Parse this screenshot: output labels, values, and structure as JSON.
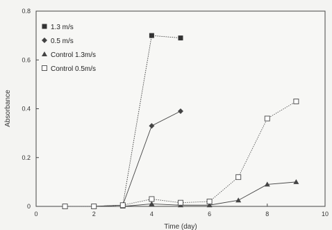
{
  "chart_data": {
    "type": "line",
    "xlabel": "Time (day)",
    "ylabel": "Absorbance",
    "xlim": [
      0,
      10
    ],
    "ylim": [
      0,
      0.8
    ],
    "xticks": [
      0,
      2,
      4,
      6,
      8,
      10
    ],
    "yticks": [
      0,
      0.2,
      0.4,
      0.6,
      0.8
    ],
    "ytick_labels": [
      "0",
      "0.2",
      "0.4",
      "0.6",
      "0.8"
    ],
    "grid": false,
    "legend_position": "top-left",
    "series": [
      {
        "name": "1.3 m/s",
        "marker": "filled-square",
        "line": "dotted",
        "color": "#333333",
        "x": [
          1,
          2,
          3,
          4,
          5
        ],
        "y": [
          0,
          0,
          0.005,
          0.7,
          0.69
        ]
      },
      {
        "name": "0.5 m/s",
        "marker": "filled-diamond",
        "line": "solid",
        "color": "#444444",
        "x": [
          1,
          2,
          3,
          4,
          5
        ],
        "y": [
          0,
          0,
          0.005,
          0.33,
          0.39
        ]
      },
      {
        "name": "Control 1.3m/s",
        "marker": "filled-triangle",
        "line": "solid",
        "color": "#444444",
        "x": [
          1,
          2,
          3,
          4,
          5,
          6,
          7,
          8,
          9
        ],
        "y": [
          0,
          0,
          0,
          0.01,
          0.005,
          0.005,
          0.025,
          0.09,
          0.1
        ]
      },
      {
        "name": "Control 0.5m/s",
        "marker": "open-square",
        "line": "dotted",
        "color": "#555555",
        "x": [
          1,
          2,
          3,
          4,
          5,
          6,
          7,
          8,
          9
        ],
        "y": [
          0,
          0,
          0.005,
          0.03,
          0.015,
          0.02,
          0.12,
          0.36,
          0.43
        ]
      }
    ]
  }
}
